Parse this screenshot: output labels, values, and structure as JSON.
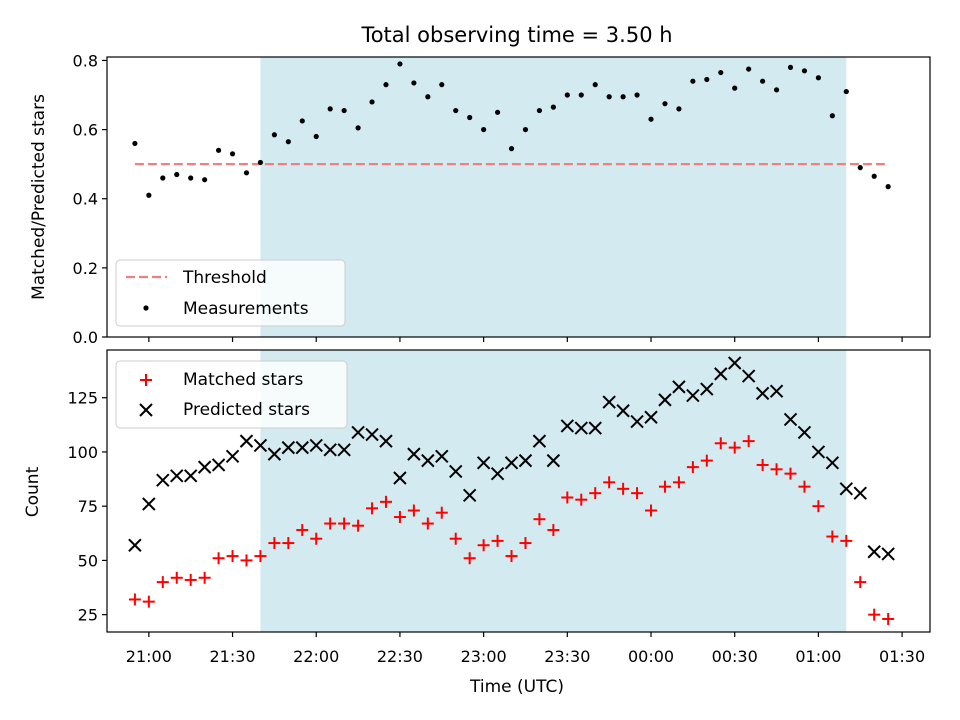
{
  "chart_data": [
    {
      "type": "scatter",
      "title": "Total observing time = 3.50 h",
      "xlabel": "",
      "ylabel": "Matched/Predicted stars",
      "xlim": [
        "20:45",
        "01:40"
      ],
      "ylim": [
        0.0,
        0.81
      ],
      "yticks": [
        "0.0",
        "0.2",
        "0.4",
        "0.6",
        "0.8"
      ],
      "grid": false,
      "legend": "lower-left",
      "observing_window": {
        "start": "21:40",
        "end": "01:10",
        "color": "#d3eaf1"
      },
      "threshold": {
        "name": "Threshold",
        "value": 0.5,
        "x_start": "20:55",
        "x_end": "01:25",
        "color": "#f08080",
        "style": "dashed"
      },
      "series": [
        {
          "name": "Measurements",
          "color": "#000000",
          "marker": "dot",
          "x": [
            "20:55",
            "21:00",
            "21:05",
            "21:10",
            "21:15",
            "21:20",
            "21:25",
            "21:30",
            "21:35",
            "21:40",
            "21:45",
            "21:50",
            "21:55",
            "22:00",
            "22:05",
            "22:10",
            "22:15",
            "22:20",
            "22:25",
            "22:30",
            "22:35",
            "22:40",
            "22:45",
            "22:50",
            "22:55",
            "23:00",
            "23:05",
            "23:10",
            "23:15",
            "23:20",
            "23:25",
            "23:30",
            "23:35",
            "23:40",
            "23:45",
            "23:50",
            "23:55",
            "00:00",
            "00:05",
            "00:10",
            "00:15",
            "00:20",
            "00:25",
            "00:30",
            "00:35",
            "00:40",
            "00:45",
            "00:50",
            "00:55",
            "01:00",
            "01:05",
            "01:10",
            "01:15",
            "01:20",
            "01:25"
          ],
          "y": [
            0.56,
            0.41,
            0.46,
            0.47,
            0.46,
            0.455,
            0.54,
            0.53,
            0.475,
            0.505,
            0.585,
            0.565,
            0.625,
            0.58,
            0.66,
            0.655,
            0.605,
            0.68,
            0.73,
            0.79,
            0.735,
            0.695,
            0.73,
            0.655,
            0.635,
            0.6,
            0.65,
            0.545,
            0.6,
            0.655,
            0.665,
            0.7,
            0.7,
            0.73,
            0.695,
            0.695,
            0.7,
            0.63,
            0.675,
            0.66,
            0.74,
            0.745,
            0.765,
            0.72,
            0.775,
            0.74,
            0.715,
            0.78,
            0.77,
            0.75,
            0.64,
            0.71,
            0.49,
            0.465,
            0.435
          ]
        }
      ]
    },
    {
      "type": "scatter",
      "title": "",
      "xlabel": "Time (UTC)",
      "ylabel": "Count",
      "xlim": [
        "20:45",
        "01:40"
      ],
      "ylim": [
        17,
        147
      ],
      "xticks": [
        "21:00",
        "21:30",
        "22:00",
        "22:30",
        "23:00",
        "23:30",
        "00:00",
        "00:30",
        "01:00",
        "01:30"
      ],
      "yticks": [
        "25",
        "50",
        "75",
        "100",
        "125"
      ],
      "grid": false,
      "legend": "top-left",
      "observing_window": {
        "start": "21:40",
        "end": "01:10",
        "color": "#d3eaf1"
      },
      "series": [
        {
          "name": "Matched stars",
          "color": "#ff0000",
          "marker": "plus",
          "x": [
            "20:55",
            "21:00",
            "21:05",
            "21:10",
            "21:15",
            "21:20",
            "21:25",
            "21:30",
            "21:35",
            "21:40",
            "21:45",
            "21:50",
            "21:55",
            "22:00",
            "22:05",
            "22:10",
            "22:15",
            "22:20",
            "22:25",
            "22:30",
            "22:35",
            "22:40",
            "22:45",
            "22:50",
            "22:55",
            "23:00",
            "23:05",
            "23:10",
            "23:15",
            "23:20",
            "23:25",
            "23:30",
            "23:35",
            "23:40",
            "23:45",
            "23:50",
            "23:55",
            "00:00",
            "00:05",
            "00:10",
            "00:15",
            "00:20",
            "00:25",
            "00:30",
            "00:35",
            "00:40",
            "00:45",
            "00:50",
            "00:55",
            "01:00",
            "01:05",
            "01:10",
            "01:15",
            "01:20",
            "01:25"
          ],
          "y": [
            32,
            31,
            40,
            42,
            41,
            42,
            51,
            52,
            50,
            52,
            58,
            58,
            64,
            60,
            67,
            67,
            66,
            74,
            77,
            70,
            73,
            67,
            72,
            60,
            51,
            57,
            59,
            52,
            58,
            69,
            64,
            79,
            78,
            81,
            86,
            83,
            81,
            73,
            84,
            86,
            93,
            96,
            104,
            102,
            105,
            94,
            92,
            90,
            84,
            75,
            61,
            59,
            40,
            25,
            23
          ]
        },
        {
          "name": "Predicted stars",
          "color": "#000000",
          "marker": "x",
          "x": [
            "20:55",
            "21:00",
            "21:05",
            "21:10",
            "21:15",
            "21:20",
            "21:25",
            "21:30",
            "21:35",
            "21:40",
            "21:45",
            "21:50",
            "21:55",
            "22:00",
            "22:05",
            "22:10",
            "22:15",
            "22:20",
            "22:25",
            "22:30",
            "22:35",
            "22:40",
            "22:45",
            "22:50",
            "22:55",
            "23:00",
            "23:05",
            "23:10",
            "23:15",
            "23:20",
            "23:25",
            "23:30",
            "23:35",
            "23:40",
            "23:45",
            "23:50",
            "23:55",
            "00:00",
            "00:05",
            "00:10",
            "00:15",
            "00:20",
            "00:25",
            "00:30",
            "00:35",
            "00:40",
            "00:45",
            "00:50",
            "00:55",
            "01:00",
            "01:05",
            "01:10",
            "01:15",
            "01:20",
            "01:25"
          ],
          "y": [
            57,
            76,
            87,
            89,
            89,
            93,
            94,
            98,
            105,
            103,
            99,
            102,
            102,
            103,
            101,
            101,
            109,
            108,
            105,
            88,
            99,
            96,
            98,
            91,
            80,
            95,
            90,
            95,
            96,
            105,
            96,
            112,
            111,
            111,
            123,
            119,
            114,
            116,
            124,
            130,
            126,
            129,
            136,
            141,
            135,
            127,
            128,
            115,
            109,
            100,
            95,
            83,
            81,
            54,
            53
          ]
        }
      ]
    }
  ]
}
